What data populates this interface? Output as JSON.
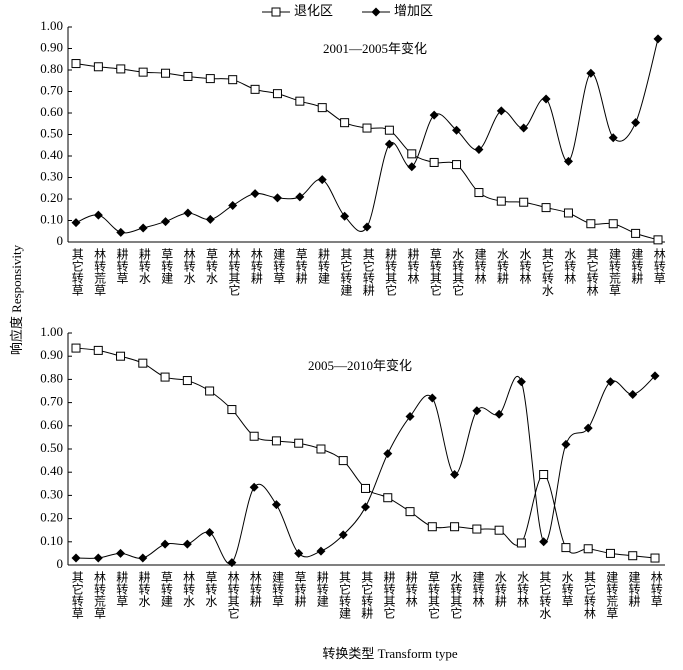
{
  "ylabel": "响应度 Responsivity",
  "xlabel": "转换类型 Transform type",
  "chart_data": [
    {
      "type": "line",
      "annotation": "2001—2005年变化",
      "categories": [
        "其它转草",
        "林转荒草",
        "耕转草",
        "耕转水",
        "草转建",
        "林转水",
        "草转水",
        "林转其它",
        "林转耕",
        "建转草",
        "草转耕",
        "耕转建",
        "其它转建",
        "其它转耕",
        "耕转其它",
        "耕转林",
        "草转其它",
        "水转其它",
        "建转林",
        "水转耕",
        "水转林",
        "其它转水",
        "水转林",
        "其它转林",
        "建转荒草",
        "建转耕",
        "林转草"
      ],
      "series": [
        {
          "name": "退化区",
          "color": "#000000",
          "marker": "square",
          "values": [
            0.83,
            0.815,
            0.805,
            0.79,
            0.785,
            0.77,
            0.76,
            0.755,
            0.71,
            0.69,
            0.655,
            0.625,
            0.555,
            0.53,
            0.52,
            0.41,
            0.37,
            0.36,
            0.23,
            0.19,
            0.185,
            0.16,
            0.135,
            0.085,
            0.085,
            0.04,
            0.01
          ]
        },
        {
          "name": "增加区",
          "color": "#000000",
          "marker": "diamond",
          "values": [
            0.09,
            0.125,
            0.045,
            0.065,
            0.095,
            0.135,
            0.105,
            0.17,
            0.225,
            0.205,
            0.21,
            0.29,
            0.12,
            0.07,
            0.455,
            0.35,
            0.59,
            0.52,
            0.43,
            0.61,
            0.53,
            0.665,
            0.375,
            0.785,
            0.485,
            0.555,
            0.945
          ]
        }
      ],
      "ylim": [
        0,
        1
      ],
      "yticks": [
        0,
        {
          "value": 0.1,
          "label": "0.10"
        },
        {
          "value": 0.2,
          "label": "0.20"
        },
        {
          "value": 0.3,
          "label": "0.30"
        },
        {
          "value": 0.4,
          "label": "0.40"
        },
        {
          "value": 0.5,
          "label": "0.50"
        },
        {
          "value": 0.6,
          "label": "0.60"
        },
        {
          "value": 0.7,
          "label": "0.70"
        },
        {
          "value": 0.8,
          "label": "0.80"
        },
        {
          "value": 0.9,
          "label": "0.90"
        },
        {
          "value": 1,
          "label": "1.00"
        }
      ]
    },
    {
      "type": "line",
      "annotation": "2005—2010年变化",
      "categories": [
        "其它转草",
        "林转荒草",
        "耕转草",
        "耕转水",
        "草转建",
        "林转水",
        "草转水",
        "林转其它",
        "林转耕",
        "建转草",
        "草转耕",
        "耕转建",
        "其它转建",
        "其它转耕",
        "耕转其它",
        "耕转林",
        "草转其它",
        "水转其它",
        "建转林",
        "水转耕",
        "水转林",
        "其它转水",
        "水转草",
        "其它转林",
        "建转荒草",
        "建转耕",
        "林转草"
      ],
      "series": [
        {
          "color": "#000000",
          "marker": "square",
          "values": [
            0.935,
            0.925,
            0.9,
            0.87,
            0.81,
            0.795,
            0.75,
            0.67,
            0.555,
            0.535,
            0.525,
            0.5,
            0.45,
            0.33,
            0.29,
            0.23,
            0.165,
            0.165,
            0.155,
            0.15,
            0.095,
            0.39,
            0.075,
            0.07,
            0.05,
            0.04,
            0.03
          ]
        },
        {
          "color": "#000000",
          "marker": "diamond",
          "values": [
            0.03,
            0.03,
            0.05,
            0.03,
            0.09,
            0.09,
            0.14,
            0.01,
            0.335,
            0.26,
            0.05,
            0.06,
            0.13,
            0.25,
            0.48,
            0.64,
            0.72,
            0.39,
            0.665,
            0.65,
            0.79,
            0.1,
            0.52,
            0.59,
            0.79,
            0.735,
            0.815
          ]
        }
      ],
      "ylim": [
        0,
        1
      ],
      "yticks": [
        0,
        {
          "value": 0.1,
          "label": "0.10"
        },
        {
          "value": 0.2,
          "label": "0.20"
        },
        {
          "value": 0.3,
          "label": "0.30"
        },
        {
          "value": 0.4,
          "label": "0.40"
        },
        {
          "value": 0.5,
          "label": "0.50"
        },
        {
          "value": 0.6,
          "label": "0.60"
        },
        {
          "value": 0.7,
          "label": "0.70"
        },
        {
          "value": 0.8,
          "label": "0.80"
        },
        {
          "value": 0.9,
          "label": "0.90"
        },
        {
          "value": 1,
          "label": "1.00"
        }
      ]
    }
  ]
}
